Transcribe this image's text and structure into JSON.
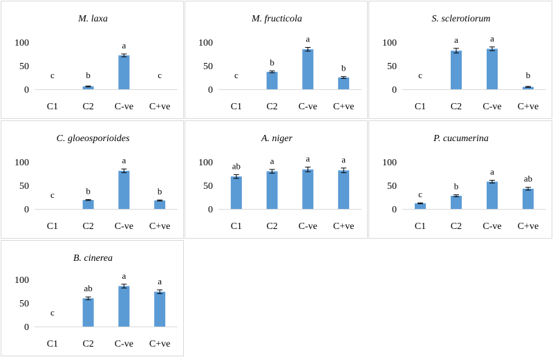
{
  "charts": [
    {
      "title": "M. laxa",
      "type": "bar",
      "categories": [
        "C1",
        "C2",
        "C-ve",
        "C+ve"
      ],
      "values": [
        0,
        6,
        72,
        0
      ],
      "errors": [
        0,
        1,
        3,
        0
      ],
      "letters": [
        "c",
        "b",
        "a",
        "c"
      ],
      "yticks": [
        "0",
        "50",
        "100"
      ],
      "ylim": [
        0,
        100
      ],
      "color": "#5b9bd5"
    },
    {
      "title": "M. fructicola",
      "type": "bar",
      "categories": [
        "C1",
        "C2",
        "C-ve",
        "C+ve"
      ],
      "values": [
        0,
        37,
        85,
        25
      ],
      "errors": [
        0,
        2,
        4,
        2
      ],
      "letters": [
        "c",
        "b",
        "a",
        "b"
      ],
      "yticks": [
        "0",
        "50",
        "100"
      ],
      "ylim": [
        0,
        100
      ],
      "color": "#5b9bd5"
    },
    {
      "title": "S. sclerotiorum",
      "type": "bar",
      "categories": [
        "C1",
        "C2",
        "C-ve",
        "C+ve"
      ],
      "values": [
        0,
        82,
        86,
        5
      ],
      "errors": [
        0,
        5,
        4,
        1
      ],
      "letters": [
        "c",
        "a",
        "a",
        "b"
      ],
      "yticks": [
        "0",
        "50",
        "100"
      ],
      "ylim": [
        0,
        100
      ],
      "color": "#5b9bd5"
    },
    {
      "title": "C. gloeosporioides",
      "type": "bar",
      "categories": [
        "C1",
        "C2",
        "C-ve",
        "C+ve"
      ],
      "values": [
        0,
        19,
        81,
        18
      ],
      "errors": [
        0,
        1,
        4,
        1
      ],
      "letters": [
        "c",
        "b",
        "a",
        "b"
      ],
      "yticks": [
        "0",
        "50",
        "100"
      ],
      "ylim": [
        0,
        100
      ],
      "color": "#5b9bd5"
    },
    {
      "title": "A. niger",
      "type": "bar",
      "categories": [
        "C1",
        "C2",
        "C-ve",
        "C+ve"
      ],
      "values": [
        69,
        80,
        84,
        82
      ],
      "errors": [
        4,
        4,
        5,
        5
      ],
      "letters": [
        "ab",
        "a",
        "a",
        "a"
      ],
      "yticks": [
        "0",
        "50",
        "100"
      ],
      "ylim": [
        0,
        100
      ],
      "color": "#5b9bd5"
    },
    {
      "title": "P. cucumerina",
      "type": "bar",
      "categories": [
        "C1",
        "C2",
        "C-ve",
        "C+ve"
      ],
      "values": [
        12,
        28,
        58,
        43
      ],
      "errors": [
        1,
        2,
        3,
        3
      ],
      "letters": [
        "c",
        "b",
        "a",
        "ab"
      ],
      "yticks": [
        "0",
        "50",
        "100"
      ],
      "ylim": [
        0,
        100
      ],
      "color": "#5b9bd5"
    },
    {
      "title": "B. cinerea",
      "type": "bar",
      "categories": [
        "C1",
        "C2",
        "C-ve",
        "C+ve"
      ],
      "values": [
        0,
        60,
        86,
        74
      ],
      "errors": [
        0,
        3,
        4,
        4
      ],
      "letters": [
        "c",
        "ab",
        "a",
        "a"
      ],
      "yticks": [
        "0",
        "50",
        "100"
      ],
      "ylim": [
        0,
        100
      ],
      "color": "#5b9bd5"
    }
  ]
}
